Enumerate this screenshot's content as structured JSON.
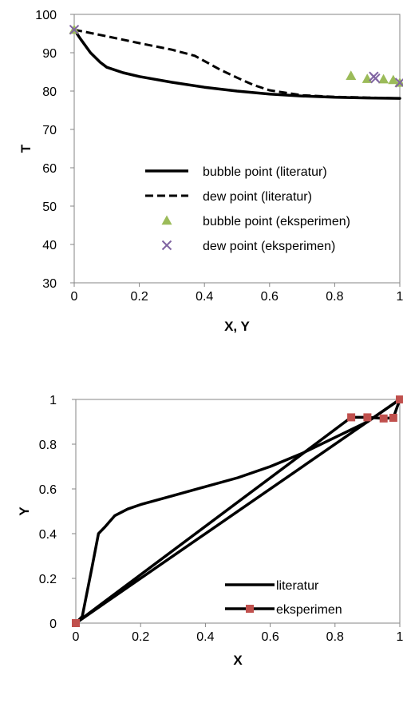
{
  "chart_data": [
    {
      "type": "scatter",
      "title": "",
      "xlabel": "X, Y",
      "ylabel": "T",
      "xlim": [
        0,
        1
      ],
      "ylim": [
        30,
        100
      ],
      "x_ticks": [
        "0",
        "0.2",
        "0.4",
        "0.6",
        "0.8",
        "1"
      ],
      "y_ticks": [
        "30",
        "40",
        "50",
        "60",
        "70",
        "80",
        "90",
        "100"
      ],
      "grid": false,
      "legend_position": "bottom-right",
      "series": [
        {
          "name": "bubble point (literatur)",
          "style": "solid-line",
          "color": "#000000",
          "points": [
            [
              0,
              96
            ],
            [
              0.02,
              93.5
            ],
            [
              0.05,
              90
            ],
            [
              0.08,
              87.5
            ],
            [
              0.1,
              86.2
            ],
            [
              0.15,
              84.8
            ],
            [
              0.2,
              83.8
            ],
            [
              0.3,
              82.3
            ],
            [
              0.4,
              81
            ],
            [
              0.5,
              80
            ],
            [
              0.6,
              79.2
            ],
            [
              0.7,
              78.7
            ],
            [
              0.8,
              78.4
            ],
            [
              0.9,
              78.2
            ],
            [
              1.0,
              78.1
            ]
          ]
        },
        {
          "name": "dew point (literatur)",
          "style": "dashed-line",
          "color": "#000000",
          "points": [
            [
              0,
              96
            ],
            [
              0.1,
              94.3
            ],
            [
              0.2,
              92.5
            ],
            [
              0.3,
              90.8
            ],
            [
              0.37,
              89.2
            ],
            [
              0.45,
              85.5
            ],
            [
              0.5,
              83.5
            ],
            [
              0.55,
              81.6
            ],
            [
              0.6,
              80.2
            ],
            [
              0.7,
              78.9
            ],
            [
              0.8,
              78.5
            ],
            [
              0.9,
              78.3
            ],
            [
              1.0,
              78.1
            ]
          ]
        },
        {
          "name": "bubble point (eksperimen)",
          "style": "triangle-marker",
          "color": "#9BBB59",
          "points": [
            [
              0,
              96
            ],
            [
              0.85,
              84
            ],
            [
              0.9,
              83.2
            ],
            [
              0.95,
              83.1
            ],
            [
              0.98,
              82.9
            ],
            [
              1.0,
              82.2
            ]
          ]
        },
        {
          "name": "dew point (eksperimen)",
          "style": "x-marker",
          "color": "#8064A2",
          "points": [
            [
              0,
              96
            ],
            [
              0.92,
              83.8
            ],
            [
              0.925,
              83.3
            ],
            [
              1.0,
              82.2
            ]
          ]
        }
      ]
    },
    {
      "type": "line",
      "title": "",
      "xlabel": "X",
      "ylabel": "Y",
      "xlim": [
        0,
        1
      ],
      "ylim": [
        0,
        1
      ],
      "x_ticks": [
        "0",
        "0.2",
        "0.4",
        "0.6",
        "0.8",
        "1"
      ],
      "y_ticks": [
        "0",
        "0.2",
        "0.4",
        "0.6",
        "0.8",
        "1"
      ],
      "grid": false,
      "legend_position": "bottom-right",
      "diagonal": [
        [
          0,
          0
        ],
        [
          1,
          1
        ]
      ],
      "series": [
        {
          "name": "literatur",
          "style": "solid-line",
          "color": "#000000",
          "points": [
            [
              0,
              0
            ],
            [
              0.02,
              0.03
            ],
            [
              0.05,
              0.25
            ],
            [
              0.07,
              0.4
            ],
            [
              0.09,
              0.43
            ],
            [
              0.12,
              0.48
            ],
            [
              0.16,
              0.51
            ],
            [
              0.2,
              0.53
            ],
            [
              0.3,
              0.57
            ],
            [
              0.4,
              0.61
            ],
            [
              0.5,
              0.65
            ],
            [
              0.6,
              0.7
            ],
            [
              0.7,
              0.76
            ],
            [
              0.8,
              0.83
            ],
            [
              0.9,
              0.9
            ],
            [
              1.0,
              1.0
            ]
          ]
        },
        {
          "name": "eksperimen",
          "style": "line-square-marker",
          "color": "#000000",
          "marker_color": "#C0504D",
          "points": [
            [
              0,
              0
            ],
            [
              0.85,
              0.92
            ],
            [
              0.9,
              0.92
            ],
            [
              0.95,
              0.915
            ],
            [
              0.98,
              0.918
            ],
            [
              1.0,
              1.0
            ],
            [
              0,
              0
            ]
          ]
        }
      ]
    }
  ]
}
